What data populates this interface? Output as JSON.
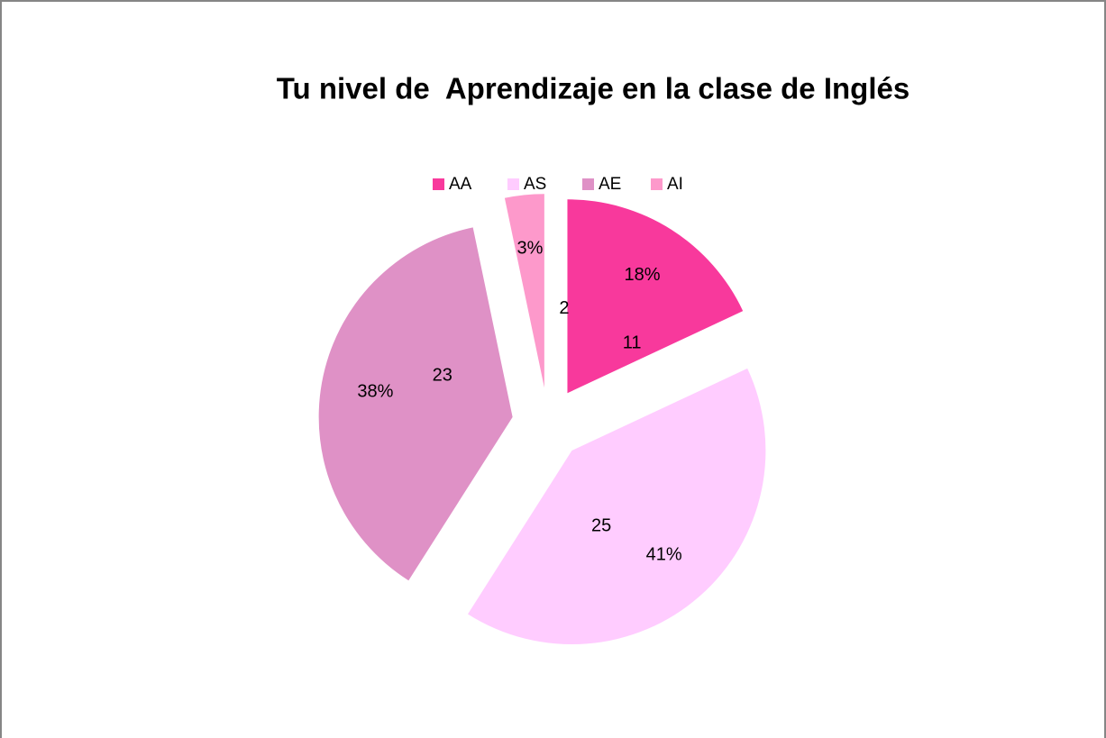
{
  "chart_data": {
    "type": "pie",
    "title": "Tu nivel de  Aprendizaje en la clase de Inglés",
    "categories": [
      "AA",
      "AS",
      "AE",
      "AI"
    ],
    "values": [
      11,
      25,
      23,
      2
    ],
    "percent_labels": [
      "18%",
      "41%",
      "38%",
      "3%"
    ],
    "colors": [
      "#f8399c",
      "#ffccff",
      "#df91c6",
      "#fd99cb"
    ],
    "legend": "top",
    "exploded": true
  }
}
